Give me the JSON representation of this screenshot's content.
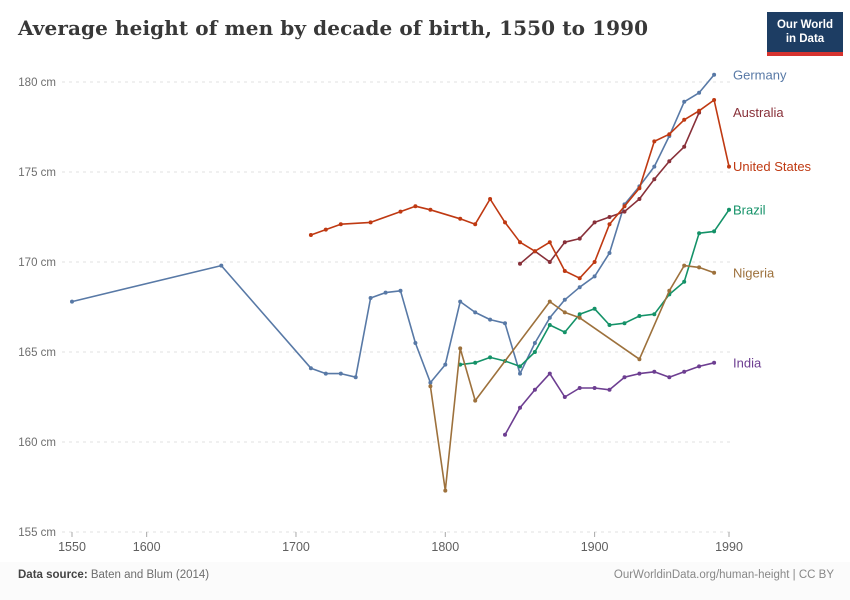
{
  "header": {
    "title": "Average height of men by decade of birth, 1550 to 1990",
    "logo": {
      "line1": "Our World",
      "line2": "in Data",
      "bg_color": "#1d3d63",
      "bar_color": "#d6332f"
    }
  },
  "chart_data": {
    "type": "line",
    "title": "Average height of men by decade of birth, 1550 to 1990",
    "unit": "cm",
    "xlabel": "",
    "ylabel": "",
    "x_ticks": [
      1550,
      1600,
      1700,
      1800,
      1900,
      1990
    ],
    "x_range": [
      1550,
      1990
    ],
    "y_ticks": [
      155,
      160,
      165,
      170,
      175,
      180
    ],
    "y_tick_suffix": " cm",
    "ylim": [
      155,
      181
    ],
    "grid": "dashed-horizontal",
    "legend_position": "right-end-labels",
    "series": [
      {
        "name": "Germany",
        "color": "#5879a6",
        "points": [
          [
            1550,
            167.8
          ],
          [
            1650,
            169.8
          ],
          [
            1710,
            164.1
          ],
          [
            1720,
            163.8
          ],
          [
            1730,
            163.8
          ],
          [
            1740,
            163.6
          ],
          [
            1750,
            168.0
          ],
          [
            1760,
            168.3
          ],
          [
            1770,
            168.4
          ],
          [
            1780,
            165.5
          ],
          [
            1790,
            163.3
          ],
          [
            1800,
            164.3
          ],
          [
            1810,
            167.8
          ],
          [
            1820,
            167.2
          ],
          [
            1830,
            166.8
          ],
          [
            1840,
            166.6
          ],
          [
            1850,
            163.8
          ],
          [
            1860,
            165.5
          ],
          [
            1870,
            166.9
          ],
          [
            1880,
            167.9
          ],
          [
            1890,
            168.6
          ],
          [
            1900,
            169.2
          ],
          [
            1910,
            170.5
          ],
          [
            1920,
            173.2
          ],
          [
            1930,
            174.2
          ],
          [
            1940,
            175.3
          ],
          [
            1950,
            177.0
          ],
          [
            1960,
            178.9
          ],
          [
            1970,
            179.4
          ],
          [
            1980,
            180.4
          ]
        ]
      },
      {
        "name": "Australia",
        "color": "#883039",
        "points": [
          [
            1850,
            169.9
          ],
          [
            1860,
            170.6
          ],
          [
            1870,
            170.0
          ],
          [
            1880,
            171.1
          ],
          [
            1890,
            171.3
          ],
          [
            1900,
            172.2
          ],
          [
            1910,
            172.5
          ],
          [
            1920,
            172.8
          ],
          [
            1930,
            173.5
          ],
          [
            1940,
            174.6
          ],
          [
            1950,
            175.6
          ],
          [
            1960,
            176.4
          ],
          [
            1970,
            178.3
          ]
        ]
      },
      {
        "name": "United States",
        "color": "#bf3912",
        "points": [
          [
            1710,
            171.5
          ],
          [
            1720,
            171.8
          ],
          [
            1730,
            172.1
          ],
          [
            1750,
            172.2
          ],
          [
            1770,
            172.8
          ],
          [
            1780,
            173.1
          ],
          [
            1790,
            172.9
          ],
          [
            1810,
            172.4
          ],
          [
            1820,
            172.1
          ],
          [
            1830,
            173.5
          ],
          [
            1840,
            172.2
          ],
          [
            1850,
            171.1
          ],
          [
            1860,
            170.6
          ],
          [
            1870,
            171.1
          ],
          [
            1880,
            169.5
          ],
          [
            1890,
            169.1
          ],
          [
            1900,
            170.0
          ],
          [
            1910,
            172.1
          ],
          [
            1920,
            173.1
          ],
          [
            1930,
            174.1
          ],
          [
            1940,
            176.7
          ],
          [
            1950,
            177.1
          ],
          [
            1960,
            177.9
          ],
          [
            1970,
            178.4
          ],
          [
            1980,
            179.0
          ],
          [
            1990,
            175.3
          ]
        ]
      },
      {
        "name": "Brazil",
        "color": "#149268",
        "points": [
          [
            1810,
            164.3
          ],
          [
            1820,
            164.4
          ],
          [
            1830,
            164.7
          ],
          [
            1840,
            164.5
          ],
          [
            1850,
            164.2
          ],
          [
            1860,
            165.0
          ],
          [
            1870,
            166.5
          ],
          [
            1880,
            166.1
          ],
          [
            1890,
            167.1
          ],
          [
            1900,
            167.4
          ],
          [
            1910,
            166.5
          ],
          [
            1920,
            166.6
          ],
          [
            1930,
            167.0
          ],
          [
            1940,
            167.1
          ],
          [
            1950,
            168.2
          ],
          [
            1960,
            168.9
          ],
          [
            1970,
            171.6
          ],
          [
            1980,
            171.7
          ],
          [
            1990,
            172.9
          ]
        ]
      },
      {
        "name": "Nigeria",
        "color": "#9d713c",
        "points": [
          [
            1790,
            163.1
          ],
          [
            1800,
            157.3
          ],
          [
            1810,
            165.2
          ],
          [
            1820,
            162.3
          ],
          [
            1870,
            167.8
          ],
          [
            1880,
            167.2
          ],
          [
            1890,
            166.9
          ],
          [
            1930,
            164.6
          ],
          [
            1950,
            168.4
          ],
          [
            1960,
            169.8
          ],
          [
            1970,
            169.7
          ],
          [
            1980,
            169.4
          ]
        ]
      },
      {
        "name": "India",
        "color": "#6d3e91",
        "points": [
          [
            1840,
            160.4
          ],
          [
            1850,
            161.9
          ],
          [
            1860,
            162.9
          ],
          [
            1870,
            163.8
          ],
          [
            1880,
            162.5
          ],
          [
            1890,
            163.0
          ],
          [
            1900,
            163.0
          ],
          [
            1910,
            162.9
          ],
          [
            1920,
            163.6
          ],
          [
            1930,
            163.8
          ],
          [
            1940,
            163.9
          ],
          [
            1950,
            163.6
          ],
          [
            1960,
            163.9
          ],
          [
            1970,
            164.2
          ],
          [
            1980,
            164.4
          ]
        ]
      }
    ]
  },
  "footer": {
    "source_label": "Data source:",
    "source_value": " Baten and Blum (2014)",
    "right_text": "OurWorldinData.org/human-height | CC BY"
  }
}
